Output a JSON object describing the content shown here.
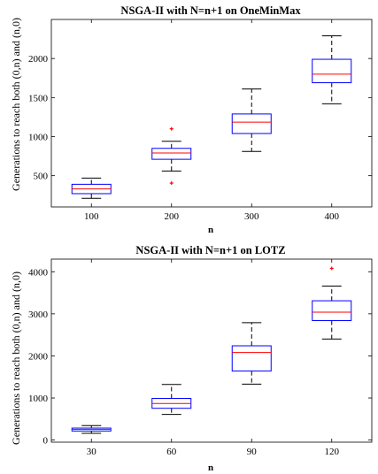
{
  "chart_data": [
    {
      "type": "box",
      "title": "NSGA-II with N=n+1 on OneMinMax",
      "xlabel": "n",
      "ylabel": "Generations to reach both (0,n) and (n,0)",
      "categories": [
        "100",
        "200",
        "300",
        "400"
      ],
      "xlim": [
        0.5,
        4.5
      ],
      "ylim": [
        100,
        2500
      ],
      "yticks": [
        500,
        1000,
        1500,
        2000
      ],
      "grid": false,
      "colors": {
        "box": "#0000ff",
        "median": "#ff0000",
        "whisker": "#000000",
        "outlier": "#ff0000"
      },
      "boxes": [
        {
          "category": "100",
          "min": 210,
          "q1": 270,
          "median": 330,
          "q3": 390,
          "max": 470,
          "outliers": []
        },
        {
          "category": "200",
          "min": 560,
          "q1": 710,
          "median": 790,
          "q3": 850,
          "max": 940,
          "outliers": [
            1100,
            405
          ]
        },
        {
          "category": "300",
          "min": 810,
          "q1": 1040,
          "median": 1185,
          "q3": 1290,
          "max": 1610,
          "outliers": []
        },
        {
          "category": "400",
          "min": 1420,
          "q1": 1690,
          "median": 1800,
          "q3": 1990,
          "max": 2290,
          "outliers": []
        }
      ]
    },
    {
      "type": "box",
      "title": "NSGA-II with N=n+1 on LOTZ",
      "xlabel": "n",
      "ylabel": "Generations to reach both (0,n) and (n,0)",
      "categories": [
        "30",
        "60",
        "90",
        "120"
      ],
      "xlim": [
        0.5,
        4.5
      ],
      "ylim": [
        -50,
        4300
      ],
      "yticks": [
        0,
        1000,
        2000,
        3000,
        4000
      ],
      "grid": false,
      "colors": {
        "box": "#0000ff",
        "median": "#ff0000",
        "whisker": "#000000",
        "outlier": "#ff0000"
      },
      "boxes": [
        {
          "category": "30",
          "min": 160,
          "q1": 215,
          "median": 255,
          "q3": 285,
          "max": 345,
          "outliers": []
        },
        {
          "category": "60",
          "min": 610,
          "q1": 755,
          "median": 870,
          "q3": 990,
          "max": 1320,
          "outliers": []
        },
        {
          "category": "90",
          "min": 1330,
          "q1": 1640,
          "median": 2080,
          "q3": 2240,
          "max": 2790,
          "outliers": []
        },
        {
          "category": "120",
          "min": 2400,
          "q1": 2840,
          "median": 3040,
          "q3": 3310,
          "max": 3660,
          "outliers": [
            4080
          ]
        }
      ]
    }
  ]
}
